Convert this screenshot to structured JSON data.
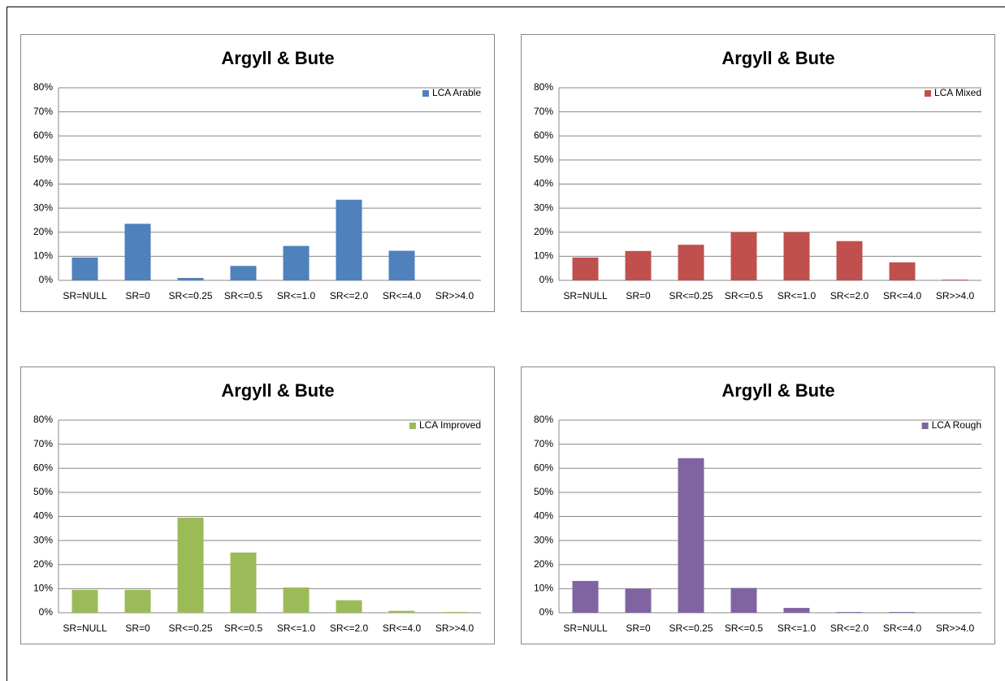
{
  "chart_data": [
    {
      "type": "bar",
      "title": "Argyll & Bute",
      "categories": [
        "SR=NULL",
        "SR=0",
        "SR<=0.25",
        "SR<=0.5",
        "SR<=1.0",
        "SR<=2.0",
        "SR<=4.0",
        "SR>>4.0"
      ],
      "series": [
        {
          "name": "LCA Arable",
          "color": "#4f81bd",
          "values": [
            9.5,
            23.5,
            1,
            6,
            14.3,
            33.5,
            12.3,
            0
          ]
        }
      ],
      "ylim": [
        0,
        80
      ],
      "yticks": [
        {
          "value": 0,
          "label": "0%"
        },
        {
          "value": 10,
          "label": "10%"
        },
        {
          "value": 20,
          "label": "20%"
        },
        {
          "value": 30,
          "label": "30%"
        },
        {
          "value": 40,
          "label": "40%"
        },
        {
          "value": 50,
          "label": "50%"
        },
        {
          "value": 60,
          "label": "60%"
        },
        {
          "value": 70,
          "label": "70%"
        },
        {
          "value": 80,
          "label": "80%"
        }
      ],
      "grid": true,
      "legend": "top-right"
    },
    {
      "type": "bar",
      "title": "Argyll & Bute",
      "categories": [
        "SR=NULL",
        "SR=0",
        "SR<=0.25",
        "SR<=0.5",
        "SR<=1.0",
        "SR<=2.0",
        "SR<=4.0",
        "SR>>4.0"
      ],
      "series": [
        {
          "name": "LCA Mixed",
          "color": "#c0504d",
          "values": [
            9.5,
            12.2,
            14.8,
            20,
            20,
            16.3,
            7.5,
            0.3
          ]
        }
      ],
      "ylim": [
        0,
        80
      ],
      "yticks": [
        {
          "value": 0,
          "label": "0%"
        },
        {
          "value": 10,
          "label": "10%"
        },
        {
          "value": 20,
          "label": "20%"
        },
        {
          "value": 30,
          "label": "30%"
        },
        {
          "value": 40,
          "label": "40%"
        },
        {
          "value": 50,
          "label": "50%"
        },
        {
          "value": 60,
          "label": "60%"
        },
        {
          "value": 70,
          "label": "70%"
        },
        {
          "value": 80,
          "label": "80%"
        }
      ],
      "grid": true,
      "legend": "top-right"
    },
    {
      "type": "bar",
      "title": "Argyll & Bute",
      "categories": [
        "SR=NULL",
        "SR=0",
        "SR<=0.25",
        "SR<=0.5",
        "SR<=1.0",
        "SR<=2.0",
        "SR<=4.0",
        "SR>>4.0"
      ],
      "series": [
        {
          "name": "LCA Improved",
          "color": "#9bbb59",
          "values": [
            9.5,
            9.5,
            39.5,
            25,
            10.5,
            5.2,
            0.8,
            0.3
          ]
        }
      ],
      "ylim": [
        0,
        80
      ],
      "yticks": [
        {
          "value": 0,
          "label": "0%"
        },
        {
          "value": 10,
          "label": "10%"
        },
        {
          "value": 20,
          "label": "20%"
        },
        {
          "value": 30,
          "label": "30%"
        },
        {
          "value": 40,
          "label": "40%"
        },
        {
          "value": 50,
          "label": "50%"
        },
        {
          "value": 60,
          "label": "60%"
        },
        {
          "value": 70,
          "label": "70%"
        },
        {
          "value": 80,
          "label": "80%"
        }
      ],
      "grid": true,
      "legend": "top-right"
    },
    {
      "type": "bar",
      "title": "Argyll & Bute",
      "categories": [
        "SR=NULL",
        "SR=0",
        "SR<=0.25",
        "SR<=0.5",
        "SR<=1.0",
        "SR<=2.0",
        "SR<=4.0",
        "SR>>4.0"
      ],
      "series": [
        {
          "name": "LCA Rough",
          "color": "#8064a2",
          "values": [
            13.2,
            10,
            64.2,
            10.3,
            2,
            0.3,
            0.3,
            0
          ]
        }
      ],
      "ylim": [
        0,
        80
      ],
      "yticks": [
        {
          "value": 0,
          "label": "0%"
        },
        {
          "value": 10,
          "label": "10%"
        },
        {
          "value": 20,
          "label": "20%"
        },
        {
          "value": 30,
          "label": "30%"
        },
        {
          "value": 40,
          "label": "40%"
        },
        {
          "value": 50,
          "label": "50%"
        },
        {
          "value": 60,
          "label": "60%"
        },
        {
          "value": 70,
          "label": "70%"
        },
        {
          "value": 80,
          "label": "80%"
        }
      ],
      "grid": true,
      "legend": "top-right"
    }
  ]
}
